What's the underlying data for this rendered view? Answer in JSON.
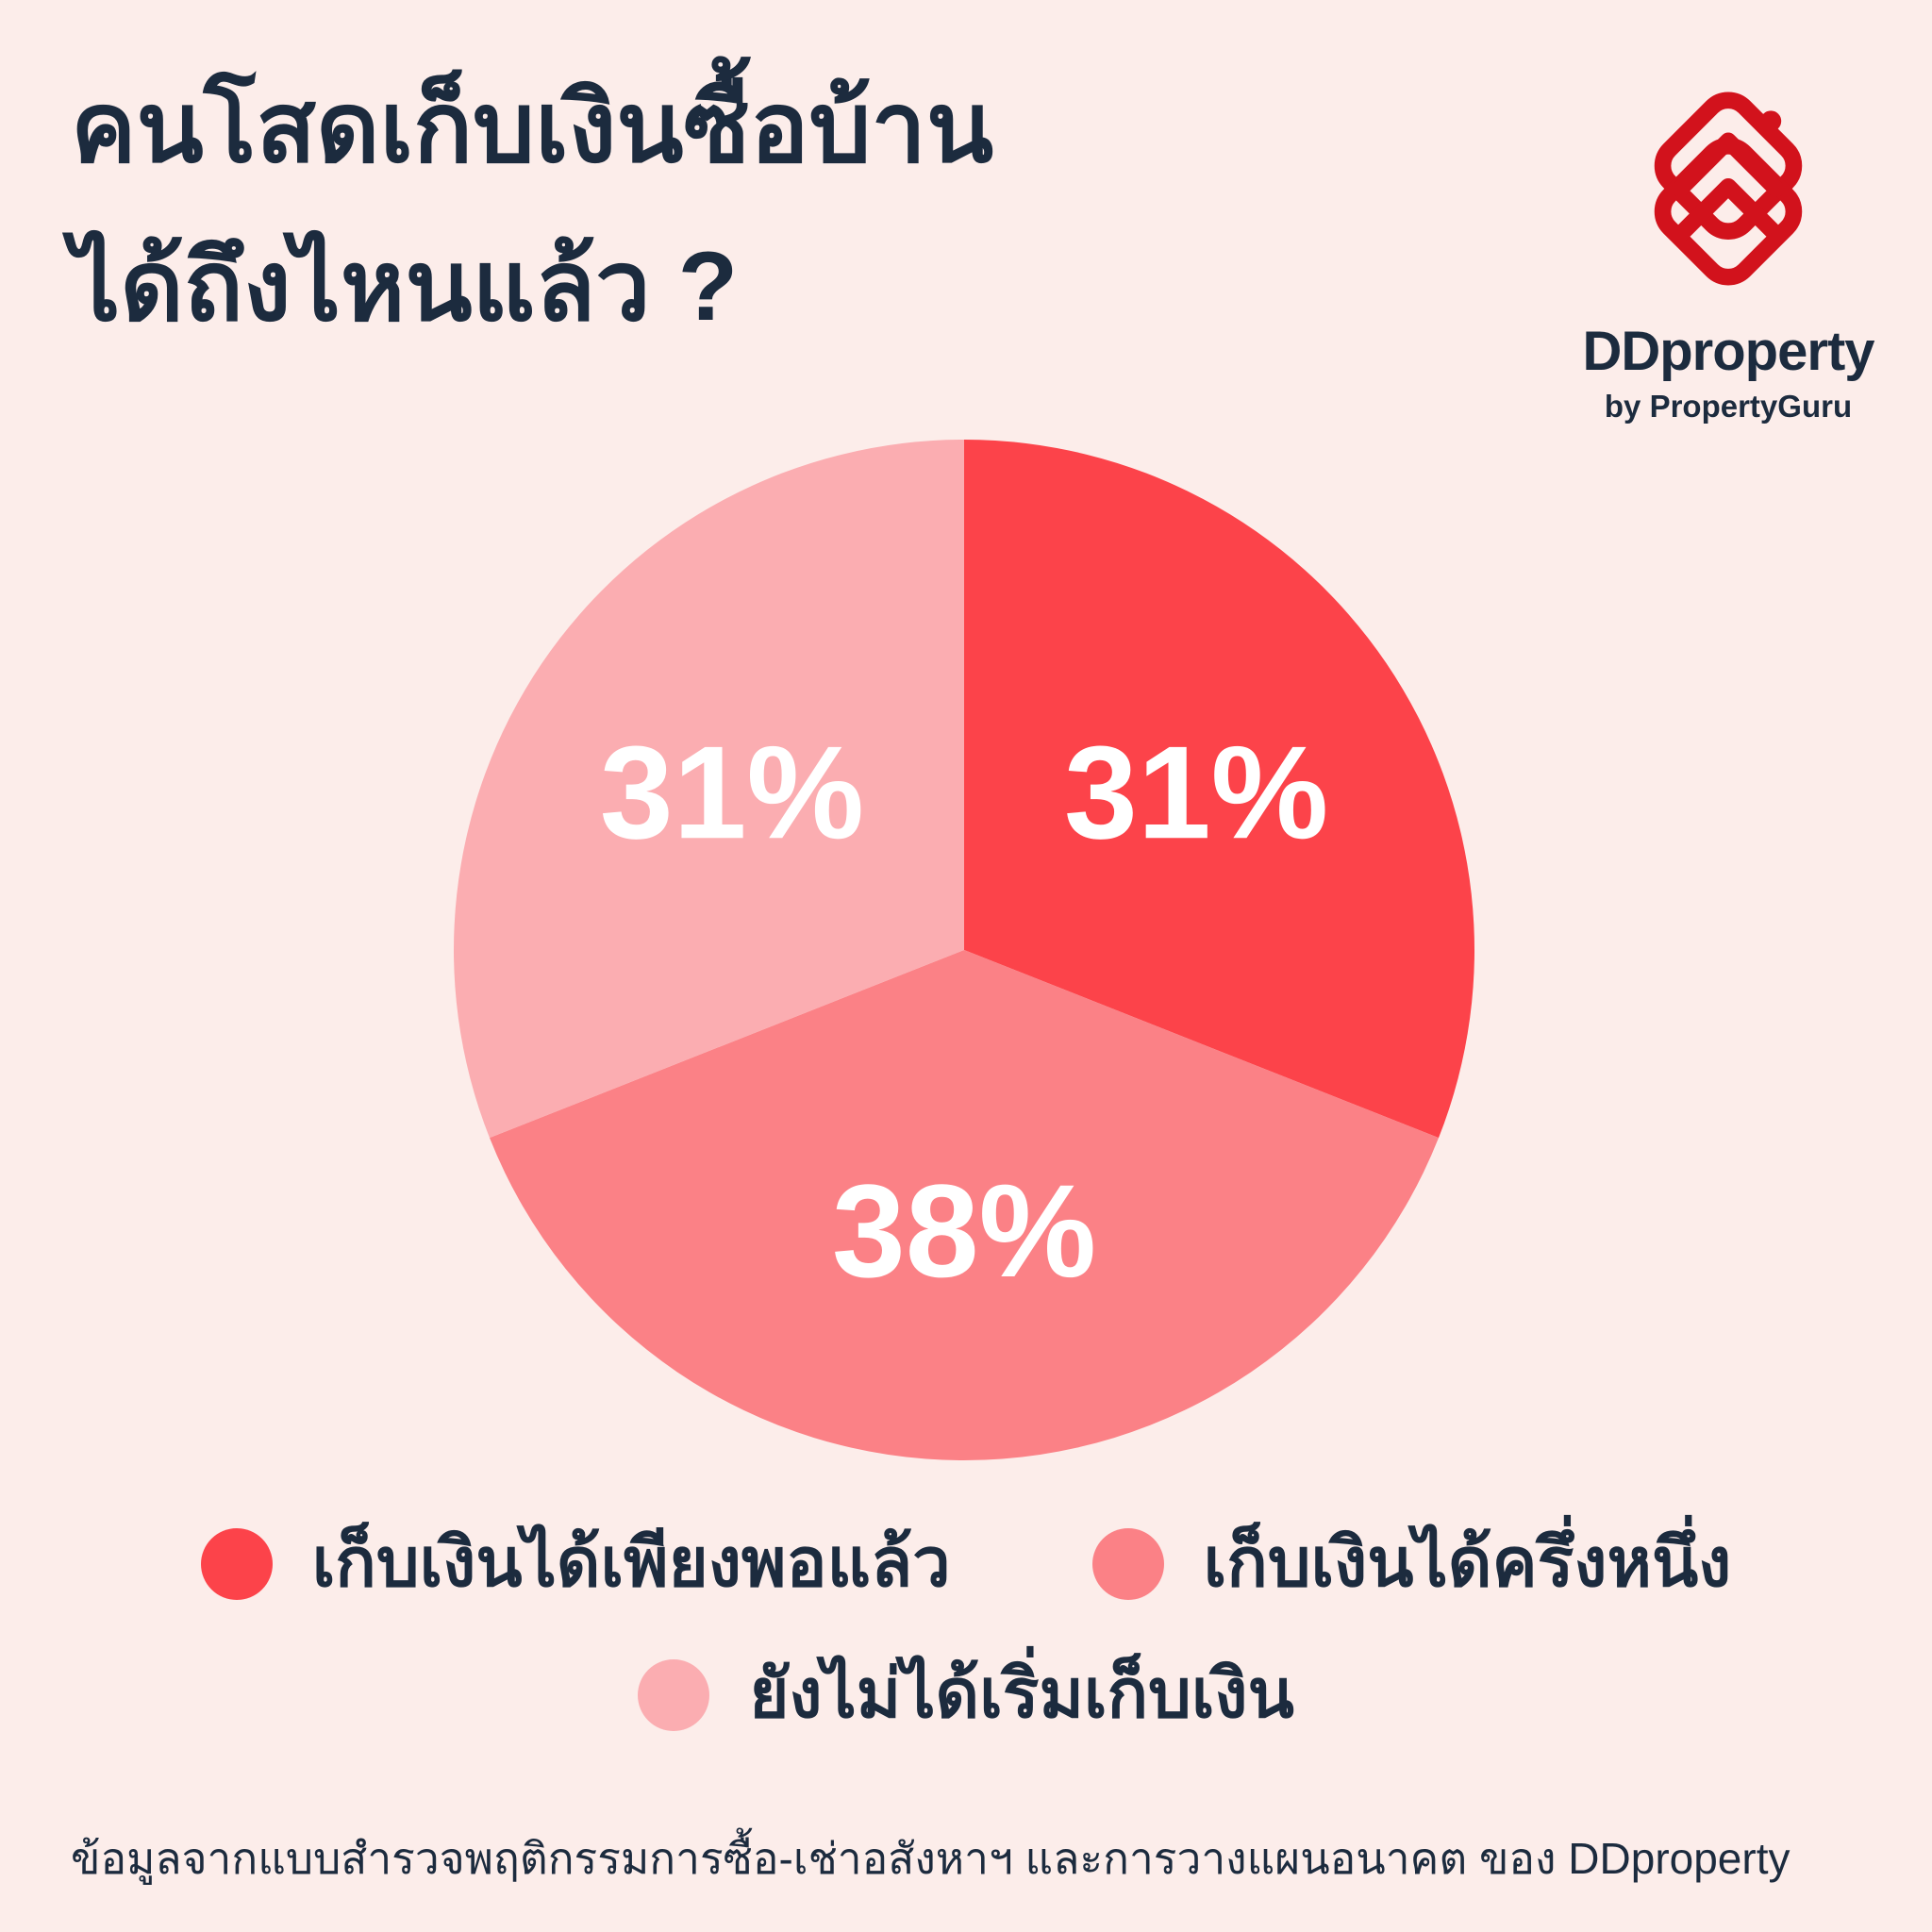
{
  "page": {
    "background_color": "#FCEDEA",
    "text_color": "#1C2B3E"
  },
  "header": {
    "title_line1": "คนโสดเก็บเงินซื้อบ้าน",
    "title_line2": "ได้ถึงไหนแล้ว ?"
  },
  "logo": {
    "brand": "DDproperty",
    "byline": "by PropertyGuru",
    "icon": "ddproperty-house-icon",
    "icon_color": "#D2121C"
  },
  "chart_data": {
    "type": "pie",
    "title": "คนโสดเก็บเงินซื้อบ้านได้ถึงไหนแล้ว ?",
    "start_angle_deg": 0,
    "direction": "clockwise",
    "total": 100,
    "slices": [
      {
        "label": "เก็บเงินได้เพียงพอแล้ว",
        "value": 31,
        "display": "31%",
        "color": "#FC434A"
      },
      {
        "label": "เก็บเงินได้ครึ่งหนึ่ง",
        "value": 38,
        "display": "38%",
        "color": "#FB8186"
      },
      {
        "label": "ยังไม่ได้เริ่มเก็บเงิน",
        "value": 31,
        "display": "31%",
        "color": "#FBADB1"
      }
    ],
    "value_label_color": "#FFFFFF",
    "legend_position": "bottom"
  },
  "footer": {
    "source_text": "ข้อมูลจากแบบสำรวจพฤติกรรมการซื้อ-เช่าอสังหาฯ และการวางแผนอนาคต ของ DDproperty"
  }
}
